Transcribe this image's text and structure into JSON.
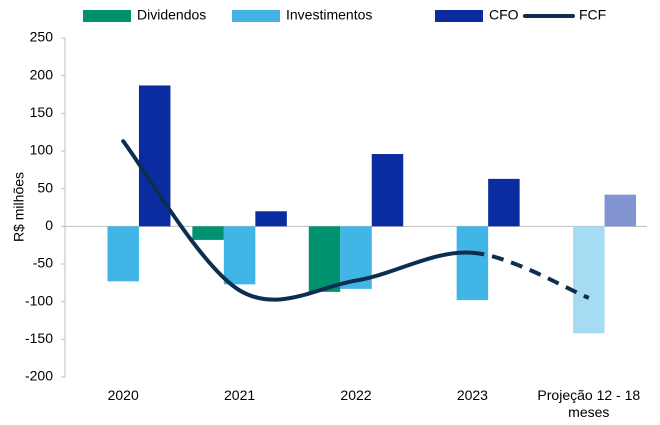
{
  "chart_data": {
    "type": "bar",
    "y_label": "R$ milhões",
    "categories": [
      "2020",
      "2021",
      "2022",
      "2023",
      "Projeção 12 - 18 meses"
    ],
    "series": [
      {
        "name": "Dividendos",
        "color": "#00926f",
        "values": [
          null,
          -18,
          -87,
          null,
          null
        ]
      },
      {
        "name": "Investimentos",
        "color": "#41b6e6",
        "colors": [
          "#41b6e6",
          "#41b6e6",
          "#41b6e6",
          "#41b6e6",
          "#a6dcf3"
        ],
        "values": [
          -73,
          -77,
          -83,
          -98,
          -142
        ]
      },
      {
        "name": "CFO",
        "color": "#0b2ca0",
        "colors": [
          "#0b2ca0",
          "#0b2ca0",
          "#0b2ca0",
          "#0b2ca0",
          "#8193d1"
        ],
        "values": [
          187,
          20,
          96,
          63,
          42
        ]
      },
      {
        "name": "FCF",
        "type": "line",
        "color": "#0d2e4f",
        "dash_from": 3,
        "values": [
          113,
          -85,
          -72,
          -35,
          -95
        ]
      }
    ],
    "ylim": [
      -200,
      250
    ],
    "yticks": [
      -200,
      -150,
      -100,
      -50,
      0,
      50,
      100,
      150,
      200,
      250
    ]
  }
}
